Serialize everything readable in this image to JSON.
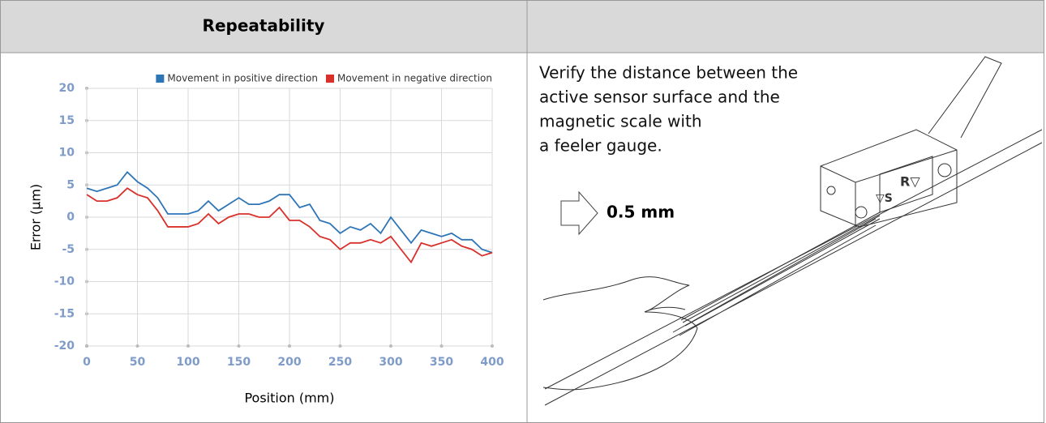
{
  "header": {
    "title": "Repeatability"
  },
  "chart_data": {
    "type": "line",
    "xlabel": "Position (mm)",
    "ylabel": "Error (µm)",
    "x": [
      0,
      10,
      20,
      30,
      40,
      50,
      60,
      70,
      80,
      90,
      100,
      110,
      120,
      130,
      140,
      150,
      160,
      170,
      180,
      190,
      200,
      210,
      220,
      230,
      240,
      250,
      260,
      270,
      280,
      290,
      300,
      310,
      320,
      330,
      340,
      350,
      360,
      370,
      380,
      390,
      400
    ],
    "series": [
      {
        "name": "Movement in positive direction",
        "color": "#2e75b6",
        "values": [
          4.5,
          4,
          4.5,
          5,
          7,
          5.5,
          4.5,
          3,
          0.5,
          0.5,
          0.5,
          1,
          2.5,
          1,
          2,
          3,
          2,
          2,
          2.5,
          3.5,
          3.5,
          1.5,
          2,
          -0.5,
          -1,
          -2.5,
          -1.5,
          -2,
          -1,
          -2.5,
          0,
          -2,
          -4,
          -2,
          -2.5,
          -3,
          -2.5,
          -3.5,
          -3.5,
          -5,
          -5.5
        ]
      },
      {
        "name": "Movement in negative direction",
        "color": "#d9302a",
        "values": [
          3.5,
          2.5,
          2.5,
          3,
          4.5,
          3.5,
          3,
          1,
          -1.5,
          -1.5,
          -1.5,
          -1,
          0.5,
          -1,
          0,
          0.5,
          0.5,
          0,
          0,
          1.5,
          -0.5,
          -0.5,
          -1.5,
          -3,
          -3.5,
          -5,
          -4,
          -4,
          -3.5,
          -4,
          -3,
          -5,
          -7,
          -4,
          -4.5,
          -4,
          -3.5,
          -4.5,
          -5,
          -6,
          -5.5
        ]
      }
    ],
    "xlim": [
      0,
      400
    ],
    "xticks": [
      0,
      50,
      100,
      150,
      200,
      250,
      300,
      350,
      400
    ],
    "ylim": [
      -20,
      20
    ],
    "yticks": [
      -20,
      -15,
      -10,
      -5,
      0,
      5,
      10,
      15,
      20
    ],
    "grid": true,
    "legend": "top-right"
  },
  "note": {
    "lines": [
      "Verify the distance between the",
      "active sensor surface and the",
      "magnetic scale with",
      "a feeler gauge."
    ],
    "callout": "0.5 mm"
  }
}
